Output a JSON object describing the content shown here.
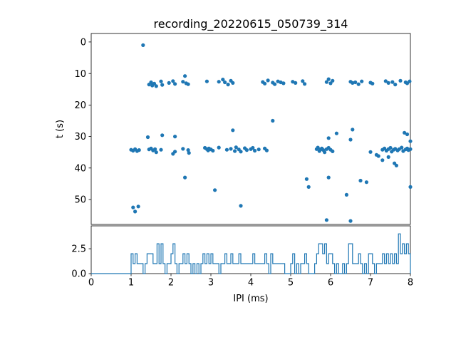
{
  "figure": {
    "title": "recording_20220615_050739_314",
    "background": "#ffffff",
    "accent": "#1f77b4"
  },
  "chart_data": [
    {
      "id": "raster-scatter",
      "type": "scatter",
      "title": "recording_20220615_050739_314",
      "xlabel": "",
      "ylabel": "t (s)",
      "xlim": [
        0,
        8
      ],
      "ylim": [
        -2.7,
        57.9
      ],
      "y_inverted": true,
      "grid": false,
      "legend": "none",
      "marker_color": "#1f77b4",
      "xtick_values": [
        0,
        1,
        2,
        3,
        4,
        5,
        6,
        7,
        8
      ],
      "xtick_labels_shown": false,
      "ytick_values": [
        0,
        10,
        20,
        30,
        40,
        50
      ],
      "ytick_labels": [
        "0",
        "10",
        "20",
        "30",
        "40",
        "50"
      ],
      "points": [
        [
          1.45,
          13.5
        ],
        [
          1.5,
          12.8
        ],
        [
          1.53,
          13.8
        ],
        [
          1.58,
          13.2
        ],
        [
          1.63,
          14.0
        ],
        [
          1.75,
          12.5
        ],
        [
          1.78,
          13.6
        ],
        [
          1.95,
          13.0
        ],
        [
          2.05,
          12.4
        ],
        [
          2.1,
          13.3
        ],
        [
          2.3,
          12.6
        ],
        [
          2.35,
          10.8
        ],
        [
          2.38,
          13.1
        ],
        [
          2.43,
          13.4
        ],
        [
          2.9,
          12.5
        ],
        [
          3.2,
          12.6
        ],
        [
          3.3,
          11.9
        ],
        [
          3.35,
          12.8
        ],
        [
          3.43,
          13.5
        ],
        [
          3.5,
          12.3
        ],
        [
          3.55,
          13.0
        ],
        [
          4.3,
          12.7
        ],
        [
          4.35,
          13.2
        ],
        [
          4.43,
          12.2
        ],
        [
          4.55,
          12.9
        ],
        [
          4.6,
          13.4
        ],
        [
          4.68,
          12.5
        ],
        [
          4.75,
          12.8
        ],
        [
          4.82,
          13.1
        ],
        [
          5.05,
          12.6
        ],
        [
          5.12,
          13.0
        ],
        [
          5.3,
          12.4
        ],
        [
          5.35,
          13.3
        ],
        [
          5.9,
          12.7
        ],
        [
          5.95,
          11.8
        ],
        [
          6.0,
          13.1
        ],
        [
          6.05,
          12.3
        ],
        [
          6.5,
          12.6
        ],
        [
          6.55,
          13.0
        ],
        [
          6.62,
          12.8
        ],
        [
          6.7,
          13.4
        ],
        [
          6.78,
          12.5
        ],
        [
          7.0,
          12.9
        ],
        [
          7.05,
          13.2
        ],
        [
          7.38,
          12.4
        ],
        [
          7.45,
          13.0
        ],
        [
          7.55,
          12.7
        ],
        [
          7.62,
          13.5
        ],
        [
          7.75,
          12.3
        ],
        [
          7.88,
          12.8
        ],
        [
          7.92,
          13.1
        ],
        [
          7.98,
          12.5
        ],
        [
          1.0,
          34.2
        ],
        [
          1.05,
          34.5
        ],
        [
          1.1,
          34.0
        ],
        [
          1.15,
          34.6
        ],
        [
          1.2,
          34.3
        ],
        [
          1.45,
          34.1
        ],
        [
          1.5,
          33.8
        ],
        [
          1.55,
          34.4
        ],
        [
          1.6,
          34.0
        ],
        [
          1.63,
          35.0
        ],
        [
          1.75,
          34.2
        ],
        [
          2.05,
          35.5
        ],
        [
          2.1,
          34.8
        ],
        [
          2.3,
          33.9
        ],
        [
          2.43,
          34.3
        ],
        [
          2.45,
          35.2
        ],
        [
          2.85,
          33.6
        ],
        [
          2.9,
          34.0
        ],
        [
          2.93,
          34.4
        ],
        [
          2.95,
          33.8
        ],
        [
          3.0,
          34.1
        ],
        [
          3.05,
          34.5
        ],
        [
          3.2,
          33.5
        ],
        [
          3.4,
          34.2
        ],
        [
          3.5,
          33.9
        ],
        [
          3.6,
          34.6
        ],
        [
          3.63,
          33.4
        ],
        [
          3.7,
          34.1
        ],
        [
          3.75,
          34.8
        ],
        [
          3.85,
          33.7
        ],
        [
          3.9,
          34.3
        ],
        [
          4.0,
          34.0
        ],
        [
          4.05,
          33.6
        ],
        [
          4.1,
          34.5
        ],
        [
          4.2,
          34.1
        ],
        [
          4.35,
          33.8
        ],
        [
          4.4,
          34.4
        ],
        [
          5.65,
          34.0
        ],
        [
          5.68,
          33.5
        ],
        [
          5.72,
          34.6
        ],
        [
          5.75,
          34.1
        ],
        [
          5.78,
          33.8
        ],
        [
          5.82,
          34.3
        ],
        [
          5.85,
          35.0
        ],
        [
          5.9,
          34.0
        ],
        [
          5.95,
          33.6
        ],
        [
          6.0,
          34.2
        ],
        [
          6.05,
          34.7
        ],
        [
          7.0,
          34.9
        ],
        [
          7.3,
          34.2
        ],
        [
          7.35,
          33.8
        ],
        [
          7.4,
          34.5
        ],
        [
          7.45,
          34.0
        ],
        [
          7.5,
          33.6
        ],
        [
          7.53,
          34.8
        ],
        [
          7.58,
          34.2
        ],
        [
          7.62,
          33.9
        ],
        [
          7.68,
          34.4
        ],
        [
          7.72,
          34.0
        ],
        [
          7.78,
          33.5
        ],
        [
          7.82,
          34.6
        ],
        [
          7.88,
          34.1
        ],
        [
          7.92,
          33.8
        ],
        [
          7.95,
          34.3
        ],
        [
          8.0,
          34.0
        ],
        [
          1.42,
          30.2
        ],
        [
          1.78,
          29.6
        ],
        [
          2.1,
          30.0
        ],
        [
          3.55,
          28.0
        ],
        [
          4.55,
          25.0
        ],
        [
          5.95,
          30.5
        ],
        [
          6.15,
          29.0
        ],
        [
          6.5,
          31.0
        ],
        [
          6.55,
          27.8
        ],
        [
          7.15,
          35.8
        ],
        [
          7.2,
          36.2
        ],
        [
          7.85,
          28.8
        ],
        [
          7.92,
          29.3
        ],
        [
          8.0,
          31.5
        ],
        [
          2.35,
          43.0
        ],
        [
          3.1,
          47.0
        ],
        [
          3.75,
          52.0
        ],
        [
          5.4,
          43.5
        ],
        [
          5.45,
          46.0
        ],
        [
          5.95,
          43.0
        ],
        [
          6.4,
          48.5
        ],
        [
          6.75,
          44.0
        ],
        [
          6.9,
          44.5
        ],
        [
          7.3,
          37.5
        ],
        [
          7.45,
          36.5
        ],
        [
          7.6,
          38.5
        ],
        [
          7.65,
          39.2
        ],
        [
          8.0,
          46.0
        ],
        [
          1.05,
          52.5
        ],
        [
          1.1,
          53.8
        ],
        [
          1.18,
          52.2
        ],
        [
          1.3,
          1.0
        ],
        [
          5.9,
          56.5
        ],
        [
          6.5,
          56.8
        ]
      ]
    },
    {
      "id": "ipi-histogram",
      "type": "line",
      "subtype": "histogram-step",
      "title": "",
      "xlabel": "IPI (ms)",
      "ylabel": "",
      "xlim": [
        0,
        8
      ],
      "ylim": [
        0,
        4.8
      ],
      "grid": false,
      "legend": "none",
      "line_color": "#1f77b4",
      "bin_width": 0.05,
      "x_start": 0,
      "xtick_values": [
        0,
        1,
        2,
        3,
        4,
        5,
        6,
        7,
        8
      ],
      "xtick_labels": [
        "0",
        "1",
        "2",
        "3",
        "4",
        "5",
        "6",
        "7",
        "8"
      ],
      "ytick_values": [
        0.0,
        2.5
      ],
      "ytick_labels": [
        "0.0",
        "2.5"
      ],
      "counts": [
        0,
        0,
        0,
        0,
        0,
        0,
        0,
        0,
        0,
        0,
        0,
        0,
        0,
        0,
        0,
        0,
        0,
        0,
        0,
        0,
        2,
        1,
        2,
        1,
        1,
        1,
        0,
        1,
        2,
        2,
        2,
        1,
        1,
        3,
        1,
        3,
        1,
        0,
        1,
        1,
        2,
        3,
        1,
        0,
        1,
        1,
        2,
        1,
        2,
        1,
        0,
        1,
        0,
        1,
        0,
        1,
        2,
        1,
        2,
        1,
        2,
        1,
        1,
        1,
        0,
        1,
        1,
        2,
        1,
        1,
        2,
        1,
        1,
        1,
        2,
        1,
        1,
        1,
        1,
        1,
        1,
        2,
        1,
        1,
        1,
        1,
        1,
        2,
        1,
        0,
        2,
        1,
        1,
        1,
        1,
        1,
        1,
        0,
        0,
        0,
        1,
        2,
        0,
        1,
        0,
        1,
        1,
        2,
        1,
        0,
        0,
        0,
        1,
        2,
        3,
        3,
        2,
        3,
        1,
        2,
        2,
        1,
        0,
        1,
        0,
        0,
        1,
        0,
        1,
        3,
        3,
        1,
        1,
        1,
        2,
        1,
        0,
        1,
        0,
        2,
        2,
        1,
        0,
        1,
        1,
        1,
        2,
        1,
        2,
        1,
        2,
        1,
        2,
        1,
        4,
        2,
        3,
        2,
        3,
        2
      ]
    }
  ]
}
